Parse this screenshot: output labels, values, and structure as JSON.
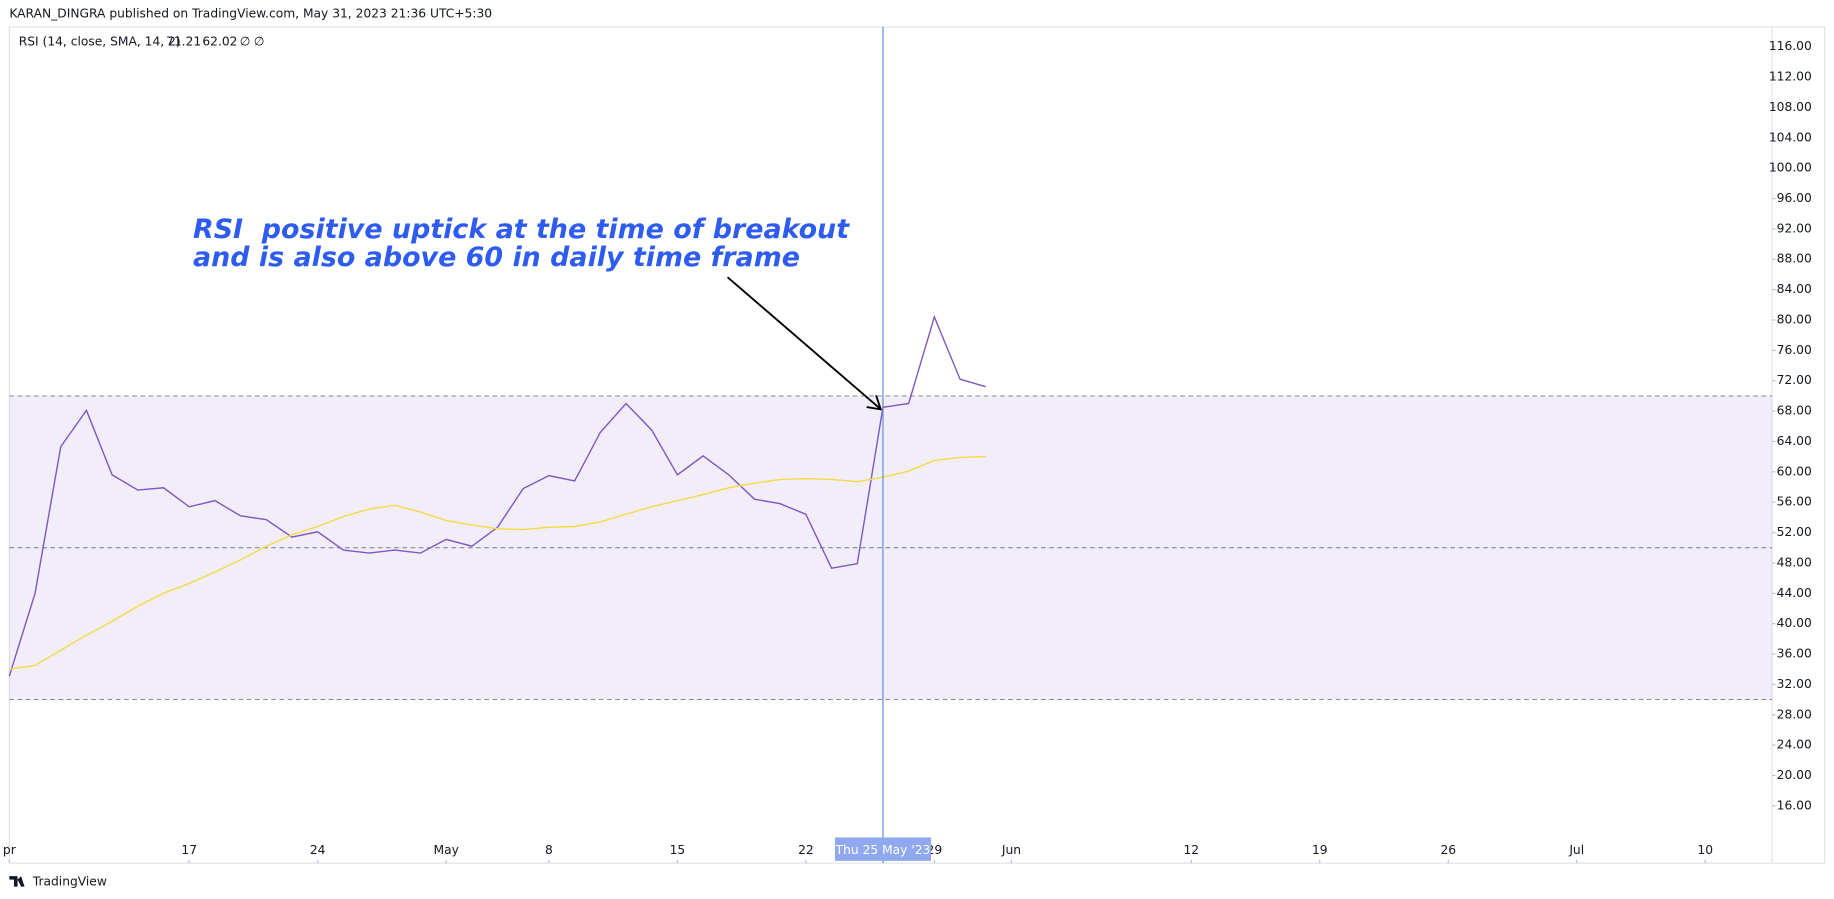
{
  "header": "KARAN_DINGRA published on TradingView.com, May 31, 2023 21:36 UTC+5:30",
  "footer": "TradingView",
  "chart_data": {
    "type": "line",
    "indicator": "RSI (14, close, SMA, 14, 2)",
    "indicator_flags": [
      "∅",
      "∅"
    ],
    "annotation": [
      "RSI  positive uptick at the time of breakout",
      "and is also above 60 in daily time frame"
    ],
    "categories": [
      null,
      null,
      null,
      null,
      null,
      null,
      null,
      null,
      null,
      null,
      null,
      null,
      null,
      null,
      null,
      null,
      null,
      null,
      null,
      null,
      null,
      null,
      null,
      null,
      null,
      null,
      null,
      null,
      null,
      null,
      null,
      null,
      null,
      null,
      "Thu 25 May '23",
      null,
      null,
      null,
      null,
      null,
      null,
      null,
      null,
      null,
      null,
      null,
      null,
      null,
      null,
      null,
      null,
      null,
      null,
      null,
      null,
      null,
      null,
      null,
      null,
      null,
      null,
      null,
      null,
      null,
      null,
      null,
      null,
      null,
      null
    ],
    "crosshair_index": 34,
    "series": [
      {
        "color": "#7e57c2",
        "values": [
          33.1,
          44.0,
          63.3,
          68.1,
          59.6,
          57.6,
          57.9,
          55.4,
          56.2,
          54.2,
          53.7,
          51.4,
          52.1,
          49.7,
          49.3,
          49.7,
          49.3,
          51.1,
          50.2,
          52.7,
          57.8,
          59.5,
          58.8,
          65.2,
          69.0,
          65.5,
          59.6,
          62.1,
          59.6,
          56.4,
          55.8,
          54.4,
          47.3,
          47.9,
          68.5,
          69.0,
          80.4,
          72.2,
          71.21,
          null,
          null,
          null,
          null,
          null,
          null,
          null,
          null,
          null,
          null,
          null,
          null,
          null,
          null,
          null,
          null,
          null,
          null,
          null,
          null,
          null,
          null,
          null,
          null,
          null,
          null,
          null,
          null,
          null,
          null
        ]
      },
      {
        "color": "#f5d94a",
        "values": [
          34.0,
          34.5,
          36.5,
          38.5,
          40.3,
          42.3,
          44.0,
          45.3,
          46.8,
          48.4,
          50.2,
          51.7,
          52.8,
          54.1,
          55.1,
          55.6,
          54.7,
          53.6,
          53.0,
          52.5,
          52.4,
          52.7,
          52.8,
          53.4,
          54.4,
          55.4,
          56.2,
          57.0,
          57.9,
          58.5,
          59.0,
          59.1,
          59.0,
          58.7,
          59.3,
          60.1,
          61.5,
          61.9,
          62.02,
          null,
          null,
          null,
          null,
          null,
          null,
          null,
          null,
          null,
          null,
          null,
          null,
          null,
          null,
          null,
          null,
          null,
          null,
          null,
          null,
          null,
          null,
          null,
          null,
          null,
          null,
          null,
          null,
          null,
          null
        ]
      }
    ],
    "levels": [
      70,
      50,
      30
    ],
    "band_color": "#7e57c2",
    "xlim": [
      0,
      68.6
    ],
    "xticks": [
      {
        "value": 0,
        "label": "pr"
      },
      {
        "value": 7,
        "label": "17"
      },
      {
        "value": 12,
        "label": "24"
      },
      {
        "value": 17,
        "label": "May"
      },
      {
        "value": 21,
        "label": "8"
      },
      {
        "value": 26,
        "label": "15"
      },
      {
        "value": 31,
        "label": "22"
      },
      {
        "value": 36,
        "label": "29"
      },
      {
        "value": 39,
        "label": "Jun"
      },
      {
        "value": 46,
        "label": "12"
      },
      {
        "value": 51,
        "label": "19"
      },
      {
        "value": 56,
        "label": "26"
      },
      {
        "value": 61,
        "label": "Jul"
      },
      {
        "value": 66,
        "label": "10"
      }
    ],
    "ylim": [
      8.45,
      118.45
    ],
    "yticks": [
      {
        "value": 16,
        "label": "16.00"
      },
      {
        "value": 20,
        "label": "20.00"
      },
      {
        "value": 24,
        "label": "24.00"
      },
      {
        "value": 28,
        "label": "28.00"
      },
      {
        "value": 32,
        "label": "32.00"
      },
      {
        "value": 36,
        "label": "36.00"
      },
      {
        "value": 40,
        "label": "40.00"
      },
      {
        "value": 44,
        "label": "44.00"
      },
      {
        "value": 48,
        "label": "48.00"
      },
      {
        "value": 52,
        "label": "52.00"
      },
      {
        "value": 56,
        "label": "56.00"
      },
      {
        "value": 60,
        "label": "60.00"
      },
      {
        "value": 64,
        "label": "64.00"
      },
      {
        "value": 68,
        "label": "68.00"
      },
      {
        "value": 72,
        "label": "72.00"
      },
      {
        "value": 76,
        "label": "76.00"
      },
      {
        "value": 80,
        "label": "80.00"
      },
      {
        "value": 84,
        "label": "84.00"
      },
      {
        "value": 88,
        "label": "88.00"
      },
      {
        "value": 92,
        "label": "92.00"
      },
      {
        "value": 96,
        "label": "96.00"
      },
      {
        "value": 100,
        "label": "100.00"
      },
      {
        "value": 104,
        "label": "104.00"
      },
      {
        "value": 108,
        "label": "108.00"
      },
      {
        "value": 112,
        "label": "112.00"
      },
      {
        "value": 116,
        "label": "116.00"
      }
    ],
    "grid": false
  }
}
